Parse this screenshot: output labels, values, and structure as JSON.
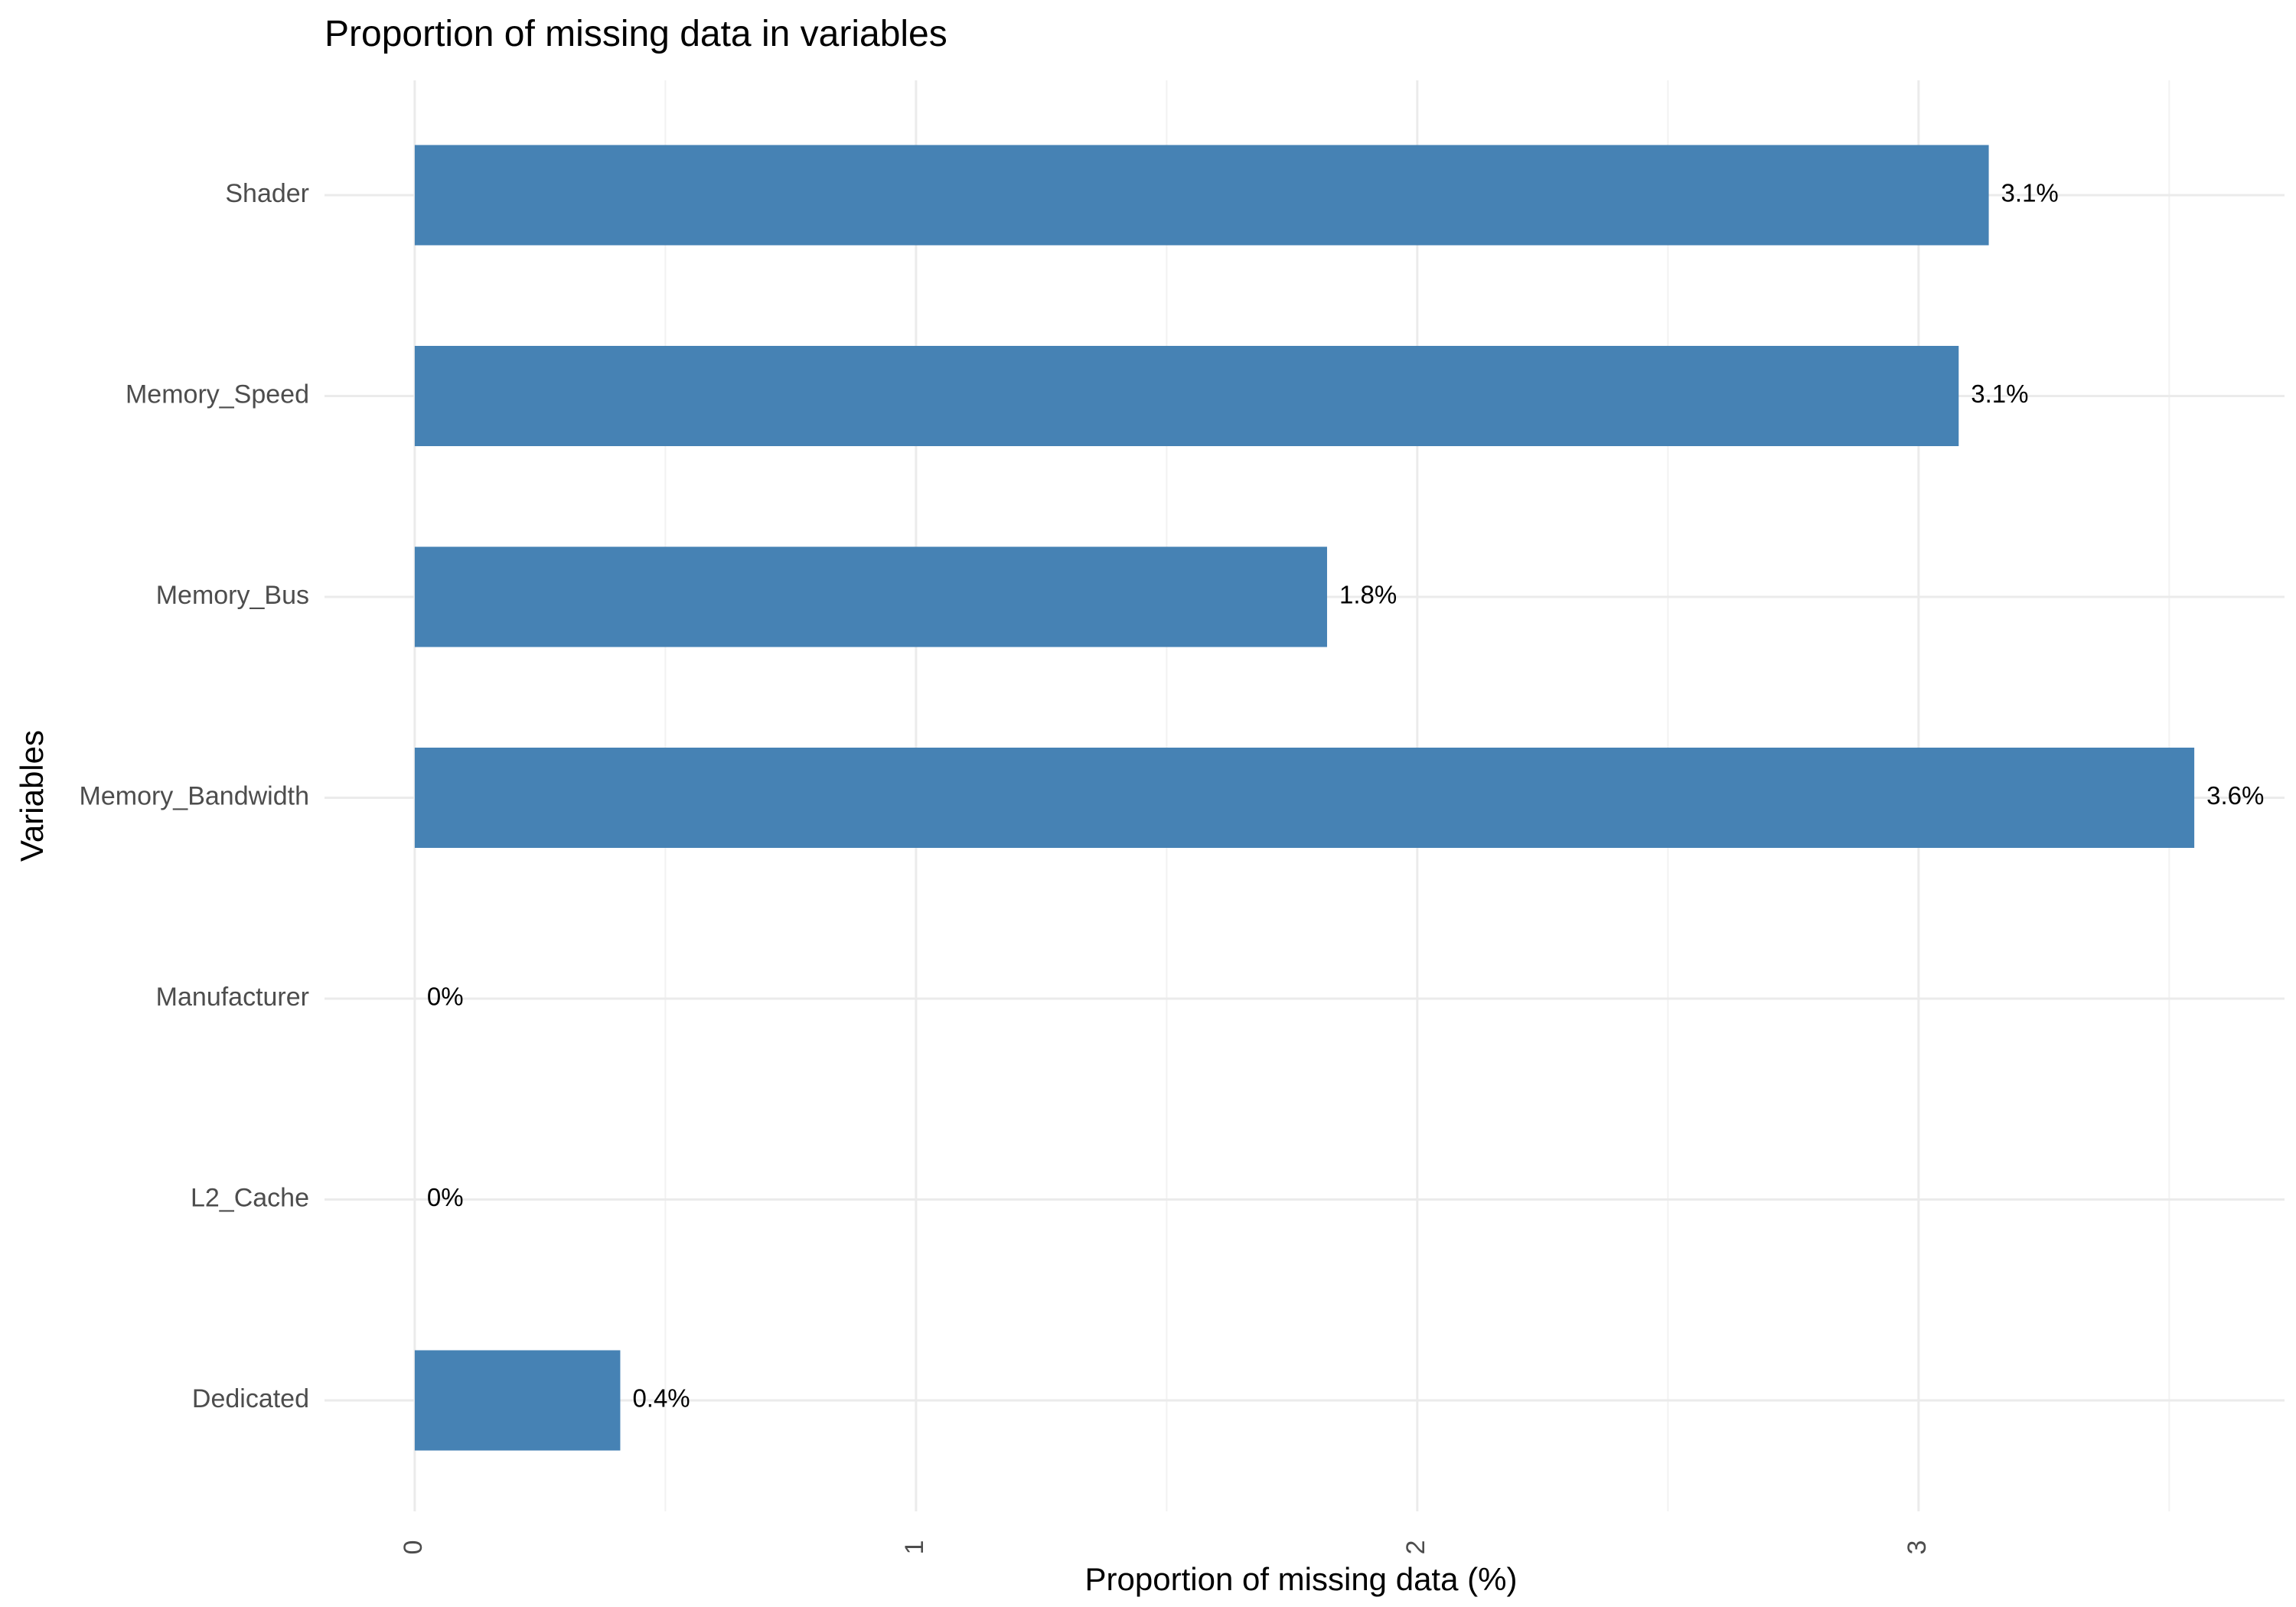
{
  "chart_data": {
    "type": "bar",
    "orientation": "horizontal",
    "title": "Proportion of missing data in variables",
    "xlabel": "Proportion of missing data (%)",
    "ylabel": "Variables",
    "categories": [
      "Dedicated",
      "L2_Cache",
      "Manufacturer",
      "Memory_Bandwidth",
      "Memory_Bus",
      "Memory_Speed",
      "Shader"
    ],
    "values": [
      0.41,
      0.0,
      0.0,
      3.55,
      1.82,
      3.08,
      3.14
    ],
    "value_labels": [
      "0.4%",
      "0%",
      "0%",
      "3.6%",
      "1.8%",
      "3.1%",
      "3.1%"
    ],
    "xlim": [
      -0.18,
      3.73
    ],
    "x_ticks": [
      0,
      1,
      2,
      3
    ],
    "x_tick_labels": [
      "0",
      "1",
      "2",
      "3"
    ],
    "bar_color": "#4682b4",
    "grid": true,
    "legend": "none"
  }
}
